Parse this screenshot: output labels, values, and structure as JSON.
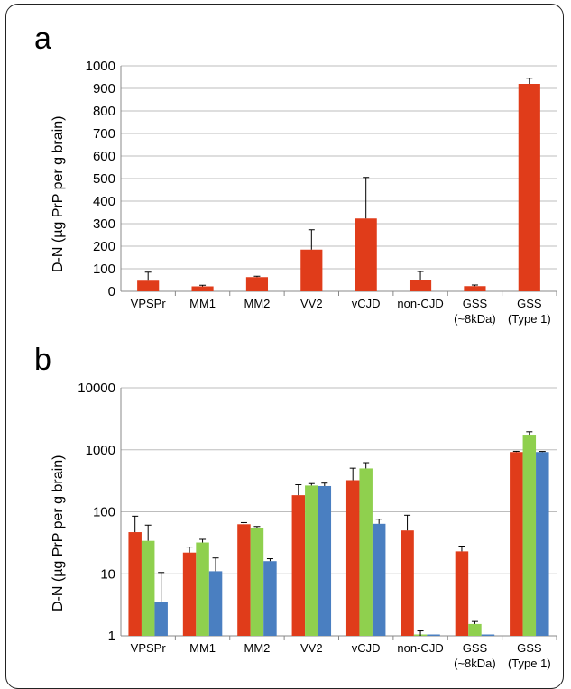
{
  "panels": [
    {
      "letter": "a"
    },
    {
      "letter": "b"
    }
  ],
  "colors": {
    "series1": "#e03c1a",
    "series2": "#8fd04e",
    "series3": "#4a7fc1",
    "grid": "#bdbdbd"
  },
  "chart_data": [
    {
      "type": "bar",
      "ylabel": "D-N (µg PrP per g brain)",
      "xlabel": "",
      "ylim": [
        0,
        1000
      ],
      "yscale": "linear",
      "yticks": [
        "0",
        "100",
        "200",
        "300",
        "400",
        "500",
        "600",
        "700",
        "800",
        "900",
        "1000"
      ],
      "grid": true,
      "categories": [
        [
          "VPSPr"
        ],
        [
          "MM1"
        ],
        [
          "MM2"
        ],
        [
          "VV2"
        ],
        [
          "vCJD"
        ],
        [
          "non-CJD"
        ],
        [
          "GSS",
          "(~8kDa)"
        ],
        [
          "GSS",
          "(Type 1)"
        ]
      ],
      "series": [
        {
          "values": [
            47,
            22,
            63,
            185,
            323,
            50,
            23,
            920
          ],
          "errors": [
            38,
            5,
            4,
            88,
            182,
            38,
            5,
            25
          ]
        }
      ]
    },
    {
      "type": "bar",
      "ylabel": "D-N (µg PrP per g brain)",
      "xlabel": "",
      "ylim": [
        1,
        10000
      ],
      "yscale": "log",
      "yticks": [
        "1",
        "10",
        "100",
        "1000",
        "10000"
      ],
      "grid": true,
      "categories": [
        [
          "VPSPr"
        ],
        [
          "MM1"
        ],
        [
          "MM2"
        ],
        [
          "VV2"
        ],
        [
          "vCJD"
        ],
        [
          "non-CJD"
        ],
        [
          "GSS",
          "(~8kDa)"
        ],
        [
          "GSS",
          "(Type 1)"
        ]
      ],
      "series": [
        {
          "values": [
            47,
            22,
            63,
            185,
            323,
            50,
            23,
            920
          ],
          "errors": [
            38,
            5,
            4,
            88,
            182,
            38,
            5,
            25
          ]
        },
        {
          "values": [
            34,
            32,
            54,
            265,
            500,
            1,
            1.55,
            1750
          ],
          "errors": [
            27,
            4,
            4,
            20,
            120,
            0.2,
            0.15,
            200
          ]
        },
        {
          "values": [
            3.5,
            11,
            16,
            260,
            64,
            1,
            1,
            920
          ],
          "errors": [
            7,
            7,
            1.5,
            30,
            12,
            0,
            0,
            20
          ]
        }
      ]
    }
  ]
}
